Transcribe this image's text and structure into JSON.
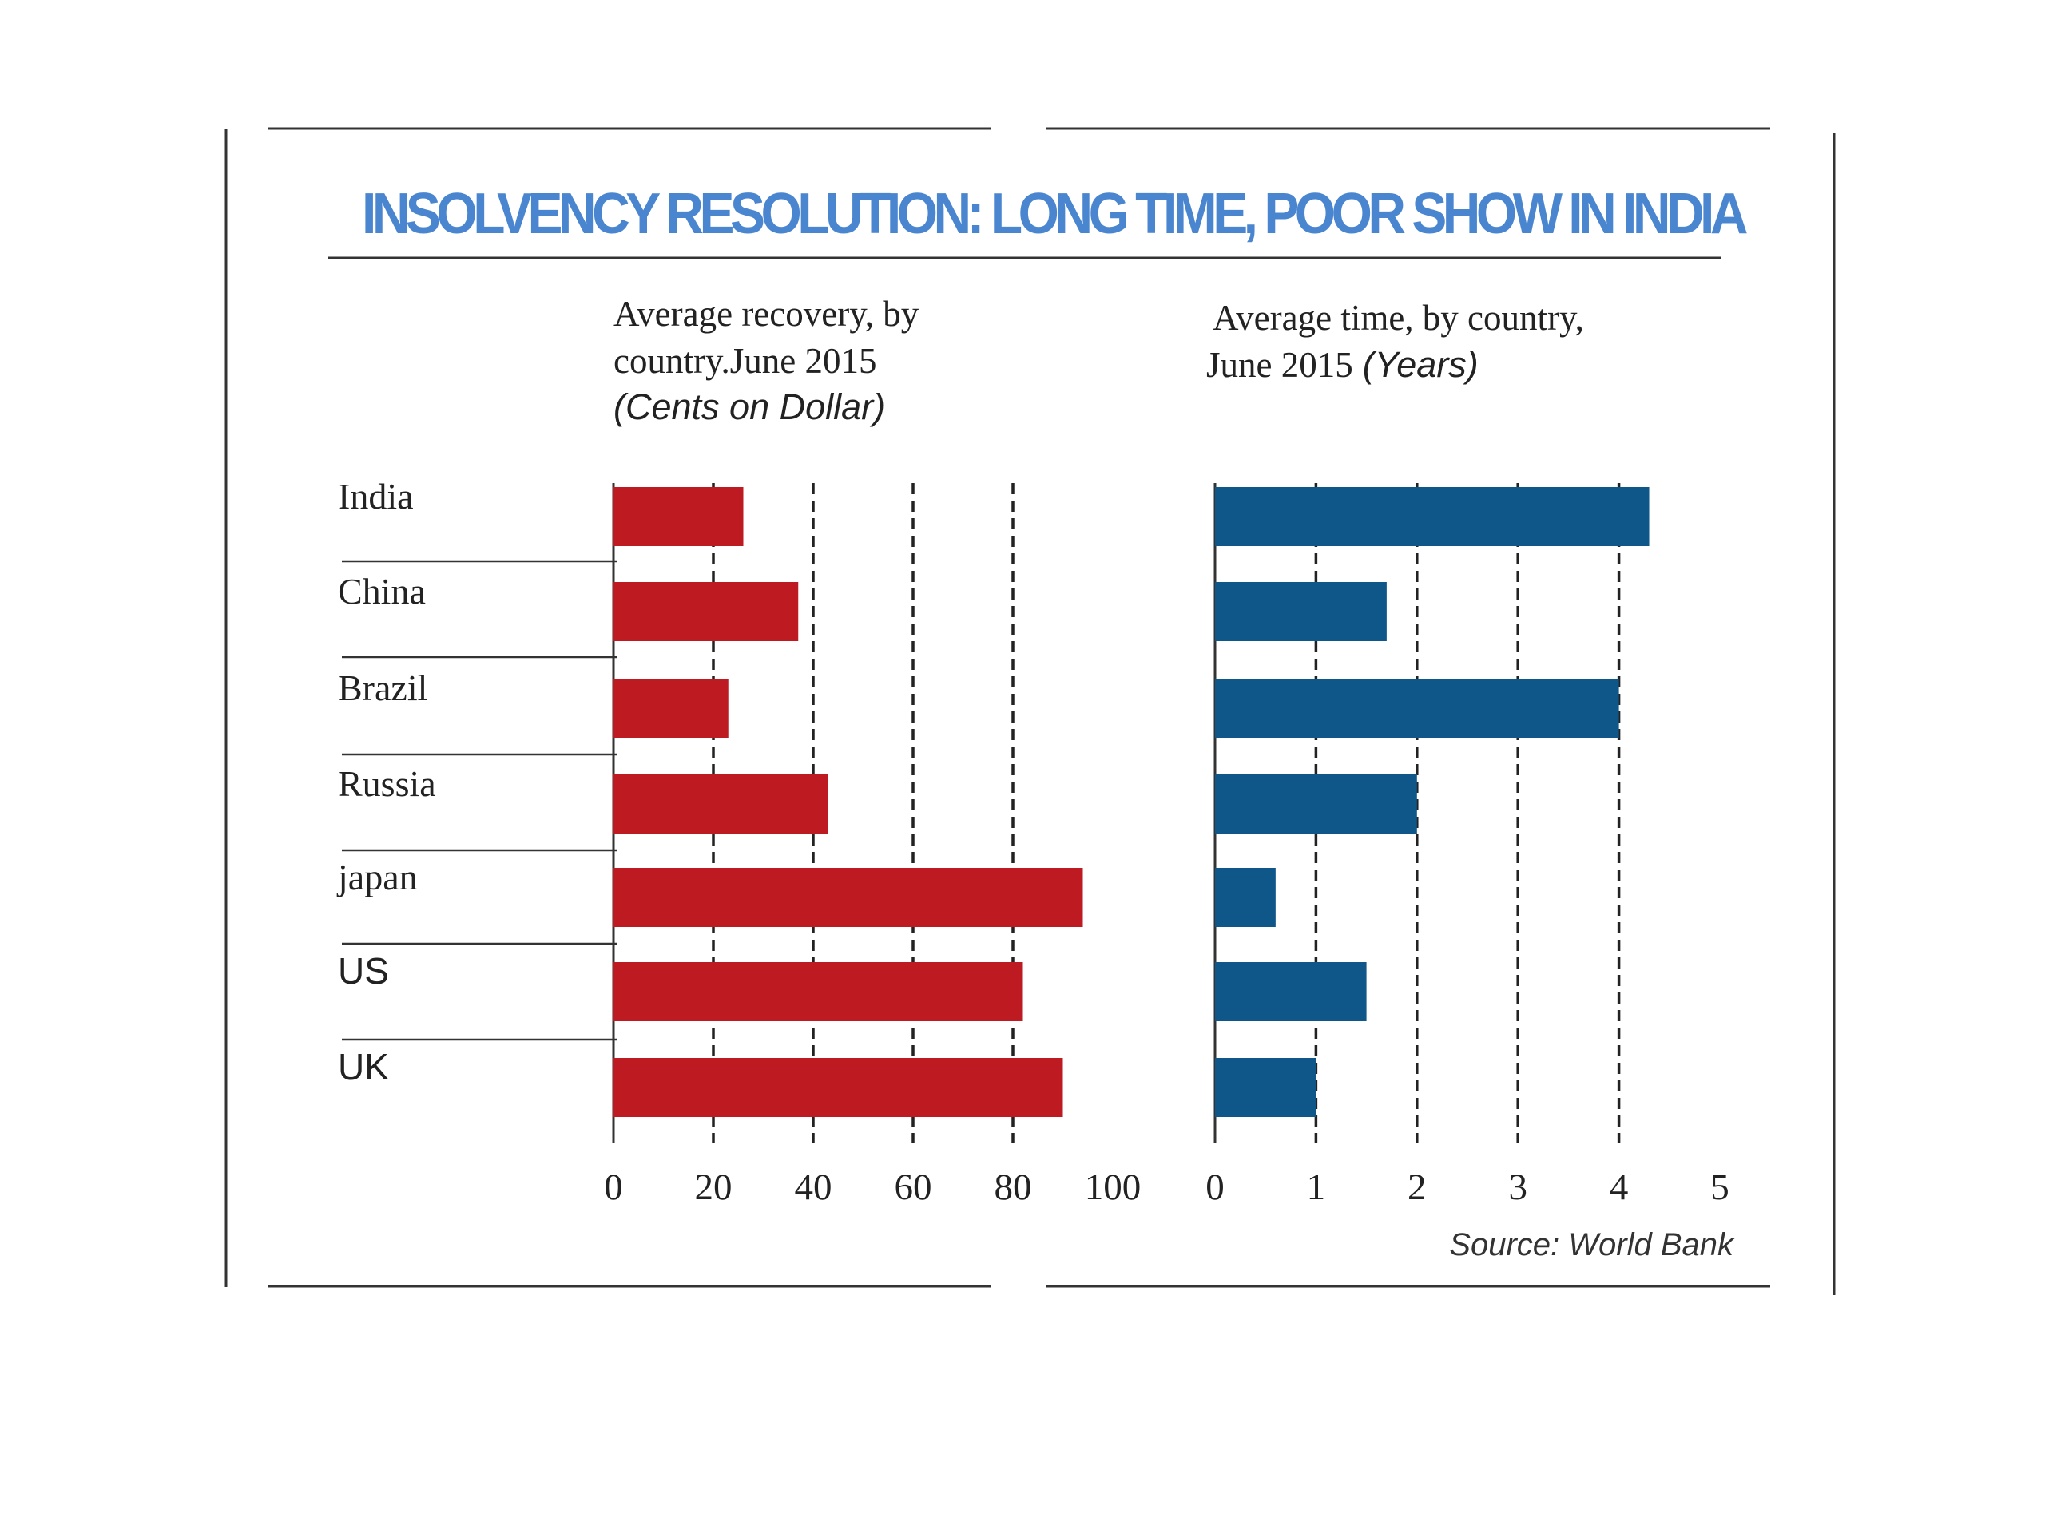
{
  "title": "INSOLVENCY RESOLUTION: LONG TIME, POOR SHOW IN INDIA",
  "source": "Source: World Bank",
  "colors": {
    "title": "#4a86cf",
    "recovery_bar": "#be1a21",
    "time_bar": "#0f5689",
    "rule": "#333333",
    "grid": "#222222"
  },
  "chart_data": [
    {
      "type": "bar",
      "orientation": "horizontal",
      "subtitle_lines": [
        "Average recovery, by",
        "country.June 2015"
      ],
      "unit": "(Cents on Dollar)",
      "categories": [
        "India",
        "China",
        "Brazil",
        "Russia",
        "japan",
        "US",
        "UK"
      ],
      "values": [
        26,
        37,
        23,
        43,
        94,
        82,
        90
      ],
      "xlim": [
        0,
        100
      ],
      "ticks": [
        "0",
        "20",
        "40",
        "60",
        "80",
        "100"
      ],
      "tick_values": [
        0,
        20,
        40,
        60,
        80,
        100
      ],
      "grid": "dashed vertical at 20, 40, 60, 80"
    },
    {
      "type": "bar",
      "orientation": "horizontal",
      "subtitle_lines": [
        "Average time, by country,",
        "June 2015"
      ],
      "unit": "(Years)",
      "categories": [
        "India",
        "China",
        "Brazil",
        "Russia",
        "japan",
        "US",
        "UK"
      ],
      "values": [
        4.3,
        1.7,
        4.0,
        2.0,
        0.6,
        1.5,
        1.0
      ],
      "xlim": [
        0,
        5
      ],
      "ticks": [
        "0",
        "1",
        "2",
        "3",
        "4",
        "5"
      ],
      "tick_values": [
        0,
        1,
        2,
        3,
        4,
        5
      ],
      "grid": "dashed vertical at 1, 2, 3, 4"
    }
  ]
}
